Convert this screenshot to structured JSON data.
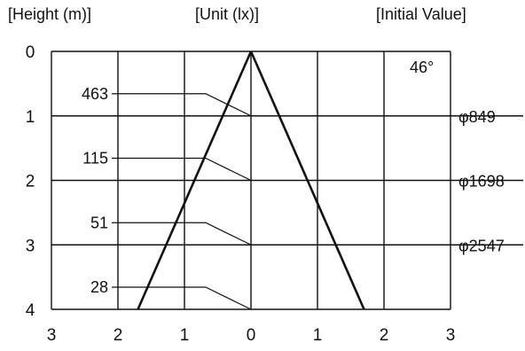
{
  "header": {
    "height_label": "[Height (m)]",
    "unit_label": "[Unit (lx)]",
    "initial_label": "[Initial Value]"
  },
  "beam_angle": "46°",
  "y_ticks": [
    "0",
    "1",
    "2",
    "3",
    "4"
  ],
  "x_ticks": [
    "3",
    "2",
    "1",
    "0",
    "1",
    "2",
    "3"
  ],
  "illuminance": [
    {
      "height": 1,
      "lux": "463",
      "diameter": "φ849"
    },
    {
      "height": 2,
      "lux": "115",
      "diameter": "φ1698"
    },
    {
      "height": 3,
      "lux": "51",
      "diameter": "φ2547"
    },
    {
      "height": 4,
      "lux": "28",
      "diameter": ""
    }
  ],
  "cone": {
    "apex_height": 0,
    "base_height": 4,
    "half_width_at_base": 1.7
  },
  "colors": {
    "line": "#111111",
    "grid": "#111111",
    "background": "#ffffff"
  }
}
